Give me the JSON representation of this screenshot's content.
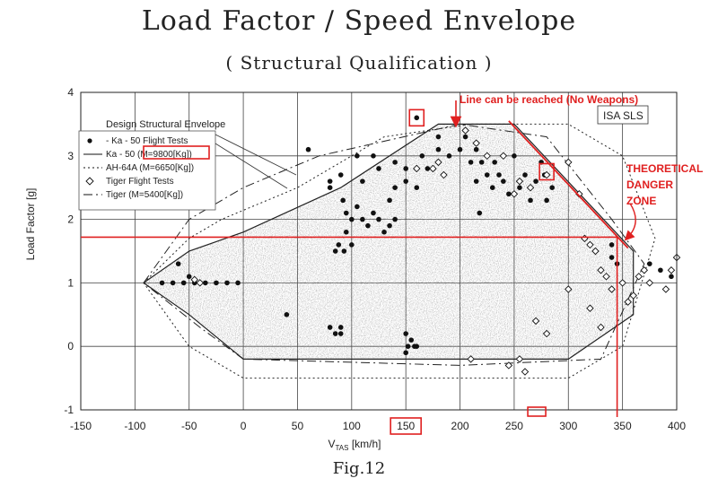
{
  "title": "Load Factor / Speed Envelope",
  "subtitle": "( Structural  Qualification )",
  "caption": "Fig.12",
  "colors": {
    "annotation": "#e02020",
    "ink": "#222222"
  },
  "chart_data": {
    "type": "scatter",
    "xlabel_main": "V",
    "xlabel_sub": "TAS",
    "xlabel_unit": " [km/h]",
    "ylabel": "Load Factor [g]",
    "xlim": [
      -150,
      400
    ],
    "ylim": [
      -1,
      4
    ],
    "x_ticks": [
      "-150",
      "-100",
      "-50",
      "0",
      "50",
      "100",
      "150",
      "200",
      "250",
      "300",
      "350",
      "400"
    ],
    "y_ticks": [
      "-1",
      "0",
      "1",
      "2",
      "3",
      "4"
    ],
    "grid": true,
    "legend_position": "top-left",
    "legend_title": "Design Structural Envelope",
    "legend": [
      {
        "symbol": "dot",
        "label": "- Ka - 50   Flight Tests"
      },
      {
        "symbol": "solid",
        "label": "Ka - 50  (M=9800[Kg])"
      },
      {
        "symbol": "dotted",
        "label": "AH-64A  (M=6650[Kg])"
      },
      {
        "symbol": "diamond",
        "label": "Tiger  Flight Tests"
      },
      {
        "symbol": "dashdot",
        "label": "Tiger  (M=5400[Kg])"
      }
    ],
    "isa_label": "ISA SLS",
    "series": [
      {
        "name": "Ka - 50  (M=9800[Kg])",
        "style": "solid",
        "points": [
          [
            -92,
            1.0
          ],
          [
            -50,
            1.5
          ],
          [
            0,
            1.8
          ],
          [
            90,
            2.5
          ],
          [
            180,
            3.5
          ],
          [
            250,
            3.5
          ],
          [
            360,
            1.5
          ],
          [
            360,
            0.5
          ],
          [
            300,
            -0.2
          ],
          [
            0,
            -0.2
          ],
          [
            -50,
            0.5
          ],
          [
            -92,
            1.0
          ]
        ]
      },
      {
        "name": "AH-64A  (M=6650[Kg])",
        "style": "dotted",
        "points": [
          [
            -92,
            1.0
          ],
          [
            -50,
            1.7
          ],
          [
            -20,
            2.0
          ],
          [
            50,
            2.5
          ],
          [
            130,
            3.3
          ],
          [
            210,
            3.5
          ],
          [
            300,
            3.5
          ],
          [
            350,
            3.0
          ],
          [
            380,
            1.7
          ],
          [
            350,
            0.0
          ],
          [
            300,
            -0.5
          ],
          [
            0,
            -0.5
          ],
          [
            -50,
            0.0
          ],
          [
            -92,
            1.0
          ]
        ]
      },
      {
        "name": "Tiger  (M=5400[Kg])",
        "style": "dashdot",
        "points": [
          [
            -92,
            1.0
          ],
          [
            -50,
            2.0
          ],
          [
            0,
            2.5
          ],
          [
            70,
            3.0
          ],
          [
            200,
            3.5
          ],
          [
            280,
            3.3
          ],
          [
            340,
            2.0
          ],
          [
            370,
            1.3
          ],
          [
            330,
            -0.2
          ],
          [
            200,
            -0.3
          ],
          [
            0,
            -0.2
          ],
          [
            -40,
            0.3
          ],
          [
            -92,
            1.0
          ]
        ]
      },
      {
        "name": "- Ka - 50   Flight Tests",
        "style": "dot",
        "points": [
          [
            -75,
            1.0
          ],
          [
            -65,
            1.0
          ],
          [
            -55,
            1.0
          ],
          [
            -45,
            1.0
          ],
          [
            -35,
            1.0
          ],
          [
            -25,
            1.0
          ],
          [
            -15,
            1.0
          ],
          [
            -5,
            1.0
          ],
          [
            -60,
            1.3
          ],
          [
            -50,
            1.1
          ],
          [
            40,
            0.5
          ],
          [
            80,
            0.3
          ],
          [
            85,
            0.2
          ],
          [
            90,
            0.2
          ],
          [
            90,
            0.3
          ],
          [
            85,
            1.5
          ],
          [
            88,
            1.6
          ],
          [
            93,
            1.5
          ],
          [
            95,
            1.8
          ],
          [
            100,
            1.6
          ],
          [
            80,
            2.6
          ],
          [
            90,
            2.7
          ],
          [
            92,
            2.3
          ],
          [
            95,
            2.1
          ],
          [
            100,
            2.0
          ],
          [
            105,
            2.2
          ],
          [
            110,
            2.0
          ],
          [
            115,
            1.9
          ],
          [
            120,
            2.1
          ],
          [
            125,
            2.0
          ],
          [
            130,
            1.8
          ],
          [
            135,
            1.9
          ],
          [
            140,
            2.0
          ],
          [
            135,
            2.3
          ],
          [
            140,
            2.5
          ],
          [
            150,
            2.6
          ],
          [
            160,
            2.5
          ],
          [
            165,
            3.0
          ],
          [
            170,
            2.8
          ],
          [
            160,
            3.6
          ],
          [
            180,
            3.3
          ],
          [
            190,
            3.0
          ],
          [
            205,
            3.3
          ],
          [
            210,
            2.9
          ],
          [
            215,
            2.6
          ],
          [
            218,
            2.1
          ],
          [
            220,
            2.9
          ],
          [
            225,
            2.7
          ],
          [
            230,
            2.5
          ],
          [
            232,
            2.9
          ],
          [
            236,
            2.7
          ],
          [
            240,
            2.6
          ],
          [
            245,
            2.4
          ],
          [
            250,
            3.0
          ],
          [
            255,
            2.5
          ],
          [
            260,
            2.7
          ],
          [
            265,
            2.3
          ],
          [
            270,
            2.6
          ],
          [
            275,
            2.9
          ],
          [
            278,
            2.7
          ],
          [
            280,
            2.3
          ],
          [
            285,
            2.5
          ],
          [
            150,
            0.2
          ],
          [
            152,
            0.0
          ],
          [
            155,
            0.1
          ],
          [
            158,
            0.0
          ],
          [
            160,
            0.0
          ],
          [
            150,
            -0.1
          ],
          [
            60,
            3.1
          ],
          [
            80,
            2.5
          ],
          [
            110,
            2.6
          ],
          [
            105,
            3.0
          ],
          [
            140,
            2.9
          ],
          [
            150,
            2.8
          ],
          [
            120,
            3.0
          ],
          [
            125,
            2.8
          ],
          [
            340,
            1.4
          ],
          [
            345,
            1.3
          ],
          [
            375,
            1.3
          ],
          [
            385,
            1.2
          ],
          [
            395,
            1.1
          ],
          [
            340,
            1.6
          ],
          [
            180,
            3.1
          ],
          [
            200,
            3.1
          ],
          [
            215,
            3.1
          ]
        ]
      },
      {
        "name": "Tiger  Flight Tests",
        "style": "diamond",
        "points": [
          [
            -45,
            1.05
          ],
          [
            -40,
            1.0
          ],
          [
            160,
            2.8
          ],
          [
            175,
            2.8
          ],
          [
            180,
            2.9
          ],
          [
            185,
            2.7
          ],
          [
            205,
            3.4
          ],
          [
            215,
            3.2
          ],
          [
            225,
            3.0
          ],
          [
            240,
            3.0
          ],
          [
            250,
            2.4
          ],
          [
            255,
            2.6
          ],
          [
            265,
            2.5
          ],
          [
            270,
            0.4
          ],
          [
            280,
            0.2
          ],
          [
            255,
            -0.2
          ],
          [
            260,
            -0.4
          ],
          [
            280,
            2.7
          ],
          [
            300,
            2.9
          ],
          [
            310,
            2.4
          ],
          [
            315,
            1.7
          ],
          [
            320,
            1.6
          ],
          [
            325,
            1.5
          ],
          [
            330,
            1.2
          ],
          [
            335,
            1.1
          ],
          [
            340,
            0.9
          ],
          [
            350,
            1.0
          ],
          [
            355,
            0.7
          ],
          [
            360,
            0.8
          ],
          [
            365,
            1.1
          ],
          [
            370,
            1.2
          ],
          [
            375,
            1.0
          ],
          [
            390,
            0.9
          ],
          [
            395,
            1.2
          ],
          [
            400,
            1.4
          ],
          [
            245,
            -0.3
          ],
          [
            210,
            -0.2
          ],
          [
            300,
            0.9
          ],
          [
            320,
            0.6
          ],
          [
            330,
            0.3
          ]
        ]
      }
    ],
    "annotations": {
      "reached_line_label": "Line can be reached (No Weapons)",
      "danger_zone_label": [
        "THEORETICAL",
        "DANGER",
        "ZONE"
      ],
      "danger_threshold_g": 1.72,
      "danger_threshold_speed": 345,
      "highlighted_points": [
        [
          160,
          3.6
        ],
        [
          280,
          2.75
        ]
      ],
      "highlighted_ticks": [
        "150"
      ],
      "reached_line": [
        [
          245,
          3.55
        ],
        [
          355,
          1.55
        ]
      ]
    }
  }
}
